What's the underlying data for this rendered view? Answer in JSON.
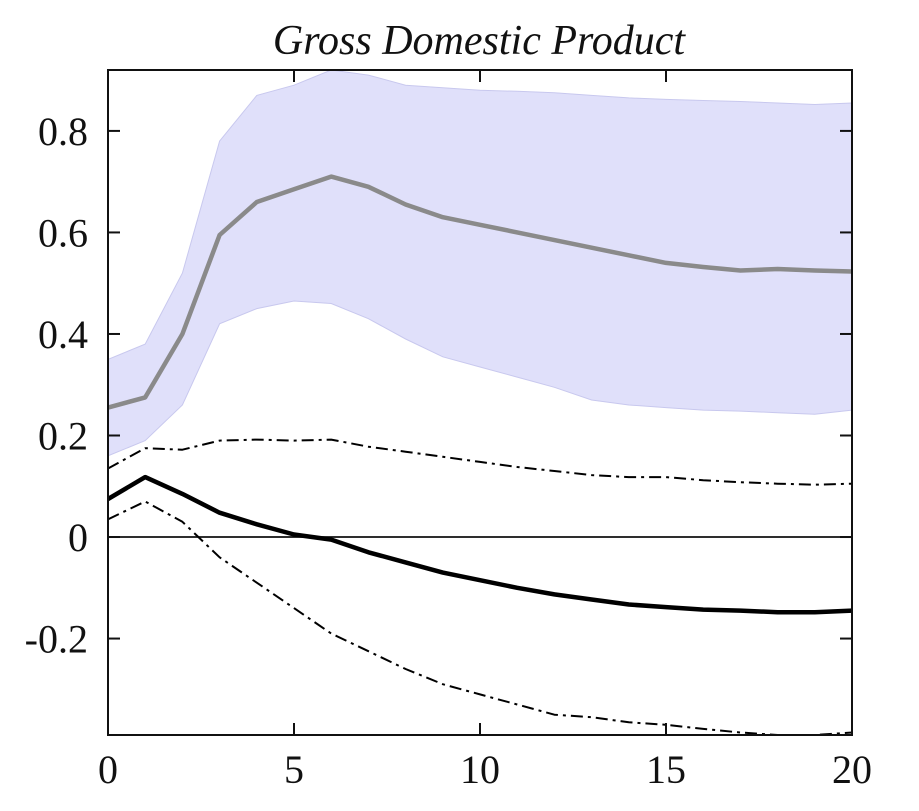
{
  "chart_data": {
    "type": "line",
    "title": "Gross Domestic Product",
    "xlabel": "",
    "ylabel": "",
    "xlim": [
      0,
      20
    ],
    "ylim": [
      -0.39,
      0.92
    ],
    "xticks": [
      0,
      5,
      10,
      15,
      20
    ],
    "xtick_labels": [
      "0",
      "5",
      "10",
      "15",
      "20"
    ],
    "yticks": [
      -0.2,
      0,
      0.2,
      0.4,
      0.6,
      0.8
    ],
    "ytick_labels": [
      "-0.2",
      "0",
      "0.2",
      "0.4",
      "0.6",
      "0.8"
    ],
    "grid": false,
    "legend": "none",
    "zero_line": 0,
    "x": [
      0,
      1,
      2,
      3,
      4,
      5,
      6,
      7,
      8,
      9,
      10,
      11,
      12,
      13,
      14,
      15,
      16,
      17,
      18,
      19,
      20
    ],
    "band": {
      "color": "#e0e0fa",
      "upper": [
        0.35,
        0.38,
        0.52,
        0.78,
        0.87,
        0.89,
        0.92,
        0.91,
        0.89,
        0.885,
        0.88,
        0.878,
        0.875,
        0.87,
        0.865,
        0.862,
        0.86,
        0.858,
        0.855,
        0.852,
        0.855
      ],
      "lower": [
        0.16,
        0.19,
        0.26,
        0.42,
        0.45,
        0.465,
        0.46,
        0.43,
        0.39,
        0.355,
        0.335,
        0.315,
        0.295,
        0.27,
        0.26,
        0.255,
        0.25,
        0.248,
        0.245,
        0.242,
        0.25
      ]
    },
    "series": [
      {
        "style": "solid-thick",
        "color": "#8a8a8a",
        "values": [
          0.255,
          0.275,
          0.4,
          0.595,
          0.66,
          0.685,
          0.71,
          0.69,
          0.655,
          0.63,
          0.615,
          0.6,
          0.585,
          0.57,
          0.555,
          0.54,
          0.532,
          0.525,
          0.528,
          0.525,
          0.523
        ]
      },
      {
        "style": "solid-thick",
        "color": "#000000",
        "values": [
          0.075,
          0.118,
          0.085,
          0.048,
          0.025,
          0.005,
          -0.005,
          -0.03,
          -0.05,
          -0.07,
          -0.085,
          -0.1,
          -0.113,
          -0.123,
          -0.133,
          -0.138,
          -0.143,
          -0.145,
          -0.148,
          -0.148,
          -0.145
        ]
      },
      {
        "style": "dashdot",
        "color": "#000000",
        "values": [
          0.135,
          0.175,
          0.172,
          0.19,
          0.192,
          0.19,
          0.192,
          0.178,
          0.168,
          0.158,
          0.148,
          0.138,
          0.13,
          0.122,
          0.118,
          0.118,
          0.112,
          0.108,
          0.105,
          0.103,
          0.105
        ]
      },
      {
        "style": "dashdot",
        "color": "#000000",
        "values": [
          0.035,
          0.07,
          0.03,
          -0.04,
          -0.09,
          -0.14,
          -0.19,
          -0.225,
          -0.26,
          -0.29,
          -0.31,
          -0.33,
          -0.35,
          -0.355,
          -0.365,
          -0.37,
          -0.378,
          -0.385,
          -0.39,
          -0.39,
          -0.385
        ]
      }
    ]
  }
}
